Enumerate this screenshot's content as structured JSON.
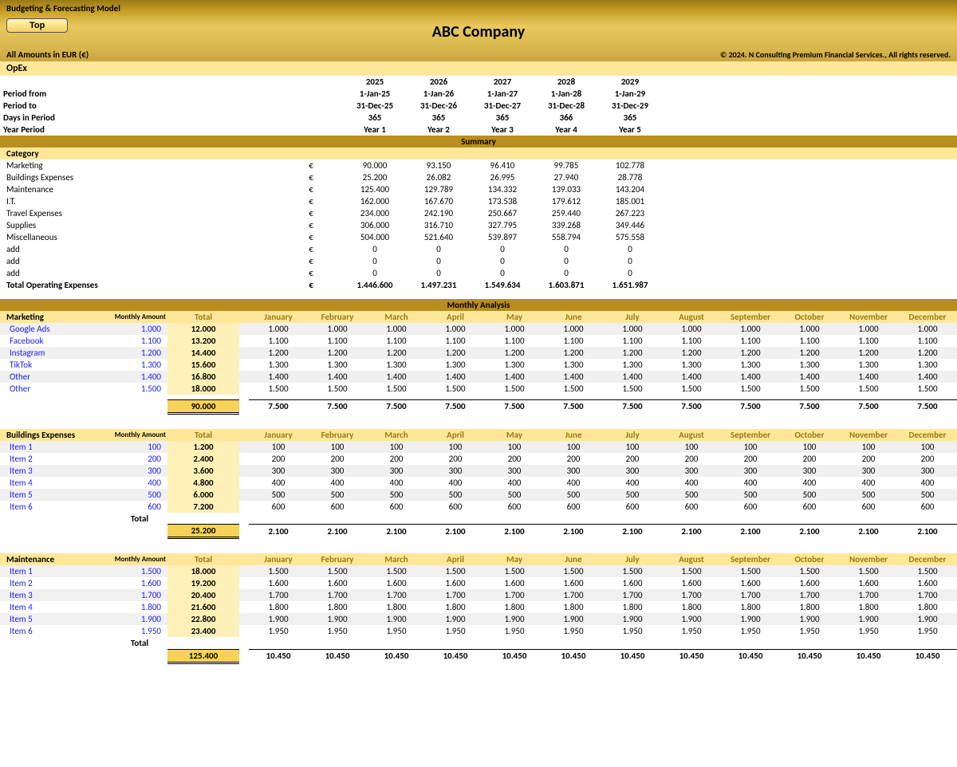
{
  "header": {
    "model_title": "Budgeting & Forecasting  Model",
    "top_button": "Top",
    "company": "ABC Company",
    "currency_note": "All Amounts in  EUR (€)",
    "copyright": "© 2024. N Consulting Premium Financial Services., All rights reserved."
  },
  "opex_label": "OpEx",
  "period_labels": {
    "from": "Period from",
    "to": "Period to",
    "days": "Days in Period",
    "year": "Year Period"
  },
  "years": [
    "2025",
    "2026",
    "2027",
    "2028",
    "2029"
  ],
  "period_from": [
    "1-Jan-25",
    "1-Jan-26",
    "1-Jan-27",
    "1-Jan-28",
    "1-Jan-29"
  ],
  "period_to": [
    "31-Dec-25",
    "31-Dec-26",
    "31-Dec-27",
    "31-Dec-28",
    "31-Dec-29"
  ],
  "days": [
    "365",
    "365",
    "365",
    "366",
    "365"
  ],
  "year_period": [
    "Year 1",
    "Year 2",
    "Year 3",
    "Year 4",
    "Year 5"
  ],
  "summary_label": "Summary",
  "category_label": "Category",
  "currency_sym": "€",
  "categories": [
    {
      "name": "Marketing",
      "vals": [
        "90.000",
        "93.150",
        "96.410",
        "99.785",
        "102.778"
      ]
    },
    {
      "name": "Buildings Expenses",
      "vals": [
        "25.200",
        "26.082",
        "26.995",
        "27.940",
        "28.778"
      ]
    },
    {
      "name": "Maintenance",
      "vals": [
        "125.400",
        "129.789",
        "134.332",
        "139.033",
        "143.204"
      ]
    },
    {
      "name": "I.T.",
      "vals": [
        "162.000",
        "167.670",
        "173.538",
        "179.612",
        "185.001"
      ]
    },
    {
      "name": "Travel Expenses",
      "vals": [
        "234.000",
        "242.190",
        "250.667",
        "259.440",
        "267.223"
      ]
    },
    {
      "name": "Supplies",
      "vals": [
        "306.000",
        "316.710",
        "327.795",
        "339.268",
        "349.446"
      ]
    },
    {
      "name": "Miscellaneous",
      "vals": [
        "504.000",
        "521.640",
        "539.897",
        "558.794",
        "575.558"
      ]
    },
    {
      "name": "add",
      "vals": [
        "0",
        "0",
        "0",
        "0",
        "0"
      ]
    },
    {
      "name": "add",
      "vals": [
        "0",
        "0",
        "0",
        "0",
        "0"
      ]
    },
    {
      "name": "add",
      "vals": [
        "0",
        "0",
        "0",
        "0",
        "0"
      ]
    }
  ],
  "total_opex_label": "Total Operating Expenses",
  "total_opex": [
    "1.446.600",
    "1.497.231",
    "1.549.634",
    "1.603.871",
    "1.651.987"
  ],
  "monthly_analysis_label": "Monthly  Analysis",
  "month_headers": [
    "January",
    "February",
    "March",
    "April",
    "May",
    "June",
    "July",
    "August",
    "September",
    "October",
    "November",
    "December"
  ],
  "monthly_amount_label": "Monthly Amount",
  "total_label": "Total",
  "groups": [
    {
      "name": "Marketing",
      "items": [
        {
          "name": "Google Ads",
          "ma": "1.000",
          "tot": "12.000",
          "mv": "1.000"
        },
        {
          "name": "Facebook",
          "ma": "1.100",
          "tot": "13.200",
          "mv": "1.100"
        },
        {
          "name": "Instagram",
          "ma": "1.200",
          "tot": "14.400",
          "mv": "1.200"
        },
        {
          "name": "TikTok",
          "ma": "1.300",
          "tot": "15.600",
          "mv": "1.300"
        },
        {
          "name": "Other",
          "ma": "1.400",
          "tot": "16.800",
          "mv": "1.400"
        },
        {
          "name": "Other",
          "ma": "1.500",
          "tot": "18.000",
          "mv": "1.500"
        }
      ],
      "row_total_label": "",
      "grand_total": "90.000",
      "month_total": "7.500"
    },
    {
      "name": "Buildings Expenses",
      "items": [
        {
          "name": "Item 1",
          "ma": "100",
          "tot": "1.200",
          "mv": "100"
        },
        {
          "name": "Item 2",
          "ma": "200",
          "tot": "2.400",
          "mv": "200"
        },
        {
          "name": "Item 3",
          "ma": "300",
          "tot": "3.600",
          "mv": "300"
        },
        {
          "name": "Item 4",
          "ma": "400",
          "tot": "4.800",
          "mv": "400"
        },
        {
          "name": "Item 5",
          "ma": "500",
          "tot": "6.000",
          "mv": "500"
        },
        {
          "name": "Item 6",
          "ma": "600",
          "tot": "7.200",
          "mv": "600"
        }
      ],
      "row_total_label": "Total",
      "grand_total": "25.200",
      "month_total": "2.100"
    },
    {
      "name": "Maintenance",
      "items": [
        {
          "name": "Item 1",
          "ma": "1.500",
          "tot": "18.000",
          "mv": "1.500"
        },
        {
          "name": "Item 2",
          "ma": "1.600",
          "tot": "19.200",
          "mv": "1.600"
        },
        {
          "name": "Item 3",
          "ma": "1.700",
          "tot": "20.400",
          "mv": "1.700"
        },
        {
          "name": "Item 4",
          "ma": "1.800",
          "tot": "21.600",
          "mv": "1.800"
        },
        {
          "name": "Item 5",
          "ma": "1.900",
          "tot": "22.800",
          "mv": "1.900"
        },
        {
          "name": "Item 6",
          "ma": "1.950",
          "tot": "23.400",
          "mv": "1.950"
        }
      ],
      "row_total_label": "Total",
      "grand_total": "125.400",
      "month_total": "10.450"
    }
  ]
}
